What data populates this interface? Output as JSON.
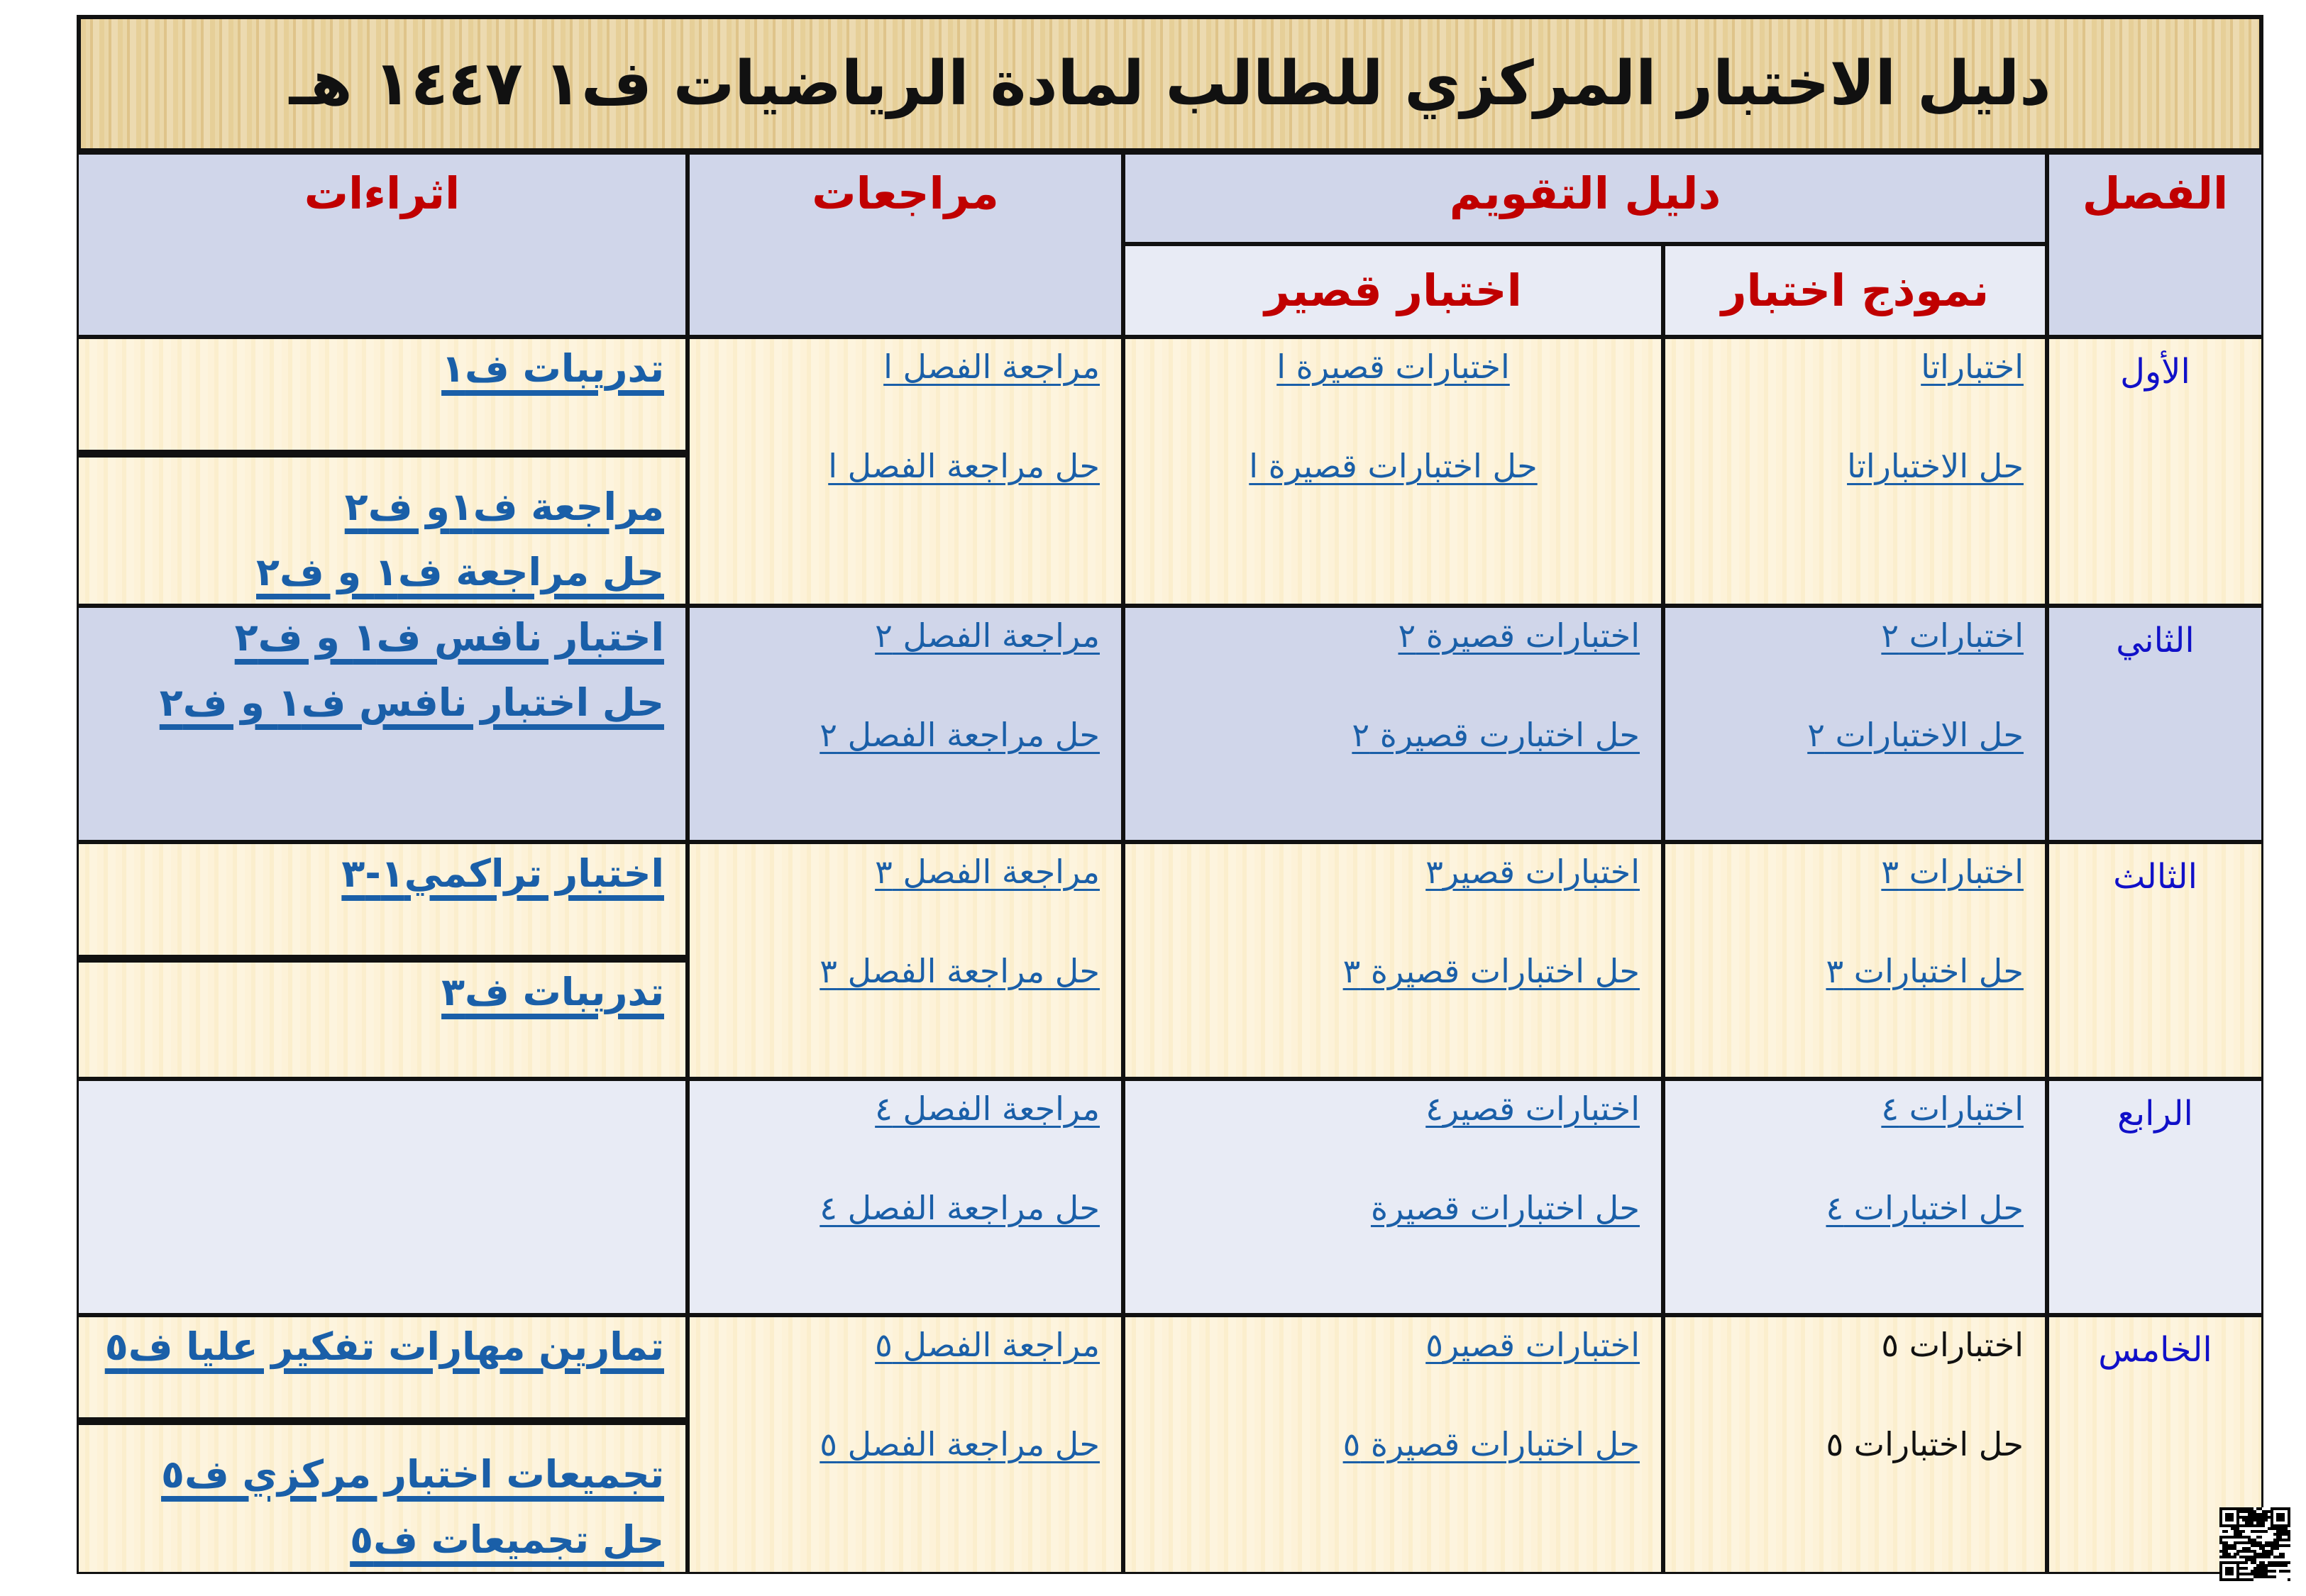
{
  "title": "دليل الاختبار المركزي للطالب لمادة الرياضيات ف١ ١٤٤٧ هـ",
  "headers": {
    "chapter": "الفصل",
    "evaluation_guide": "دليل التقويم",
    "test_model": "نموذج اختبار",
    "short_test": "اختبار قصير",
    "references": "مراجعات",
    "enrichment": "اثراءات"
  },
  "colors": {
    "link": "#1a5fa8",
    "chapter": "#1010c8",
    "header": "#c00000"
  },
  "rows": [
    {
      "chapter": "الأول",
      "model": [
        {
          "text": "اختباراتا",
          "link": true
        },
        {
          "text": "حل الاختباراتا",
          "link": true
        }
      ],
      "short": [
        {
          "text": "اختبارات قصيرة ا",
          "link": true
        },
        {
          "text": "حل اختبارات قصيرة ا",
          "link": true
        }
      ],
      "refs": [
        {
          "text": "مراجعة الفصل ا",
          "link": true
        },
        {
          "text": "حل مراجعة الفصل ا",
          "link": true
        }
      ],
      "enrich": [
        [
          "تدريبات ف١"
        ],
        [
          "مراجعة ف١و ف٢",
          "حل مراجعة ف١ و ف٢"
        ]
      ]
    },
    {
      "chapter": "الثاني",
      "model": [
        {
          "text": "اختبارات ٢",
          "link": true
        },
        {
          "text": "حل الاختبارات ٢",
          "link": true
        }
      ],
      "short": [
        {
          "text": "اختبارات قصيرة ٢",
          "link": true
        },
        {
          "text": "حل اختبارت قصيرة ٢",
          "link": true
        }
      ],
      "refs": [
        {
          "text": "مراجعة الفصل ٢",
          "link": true
        },
        {
          "text": "حل مراجعة الفصل ٢",
          "link": true
        }
      ],
      "enrich": [
        [
          "اختبار نافس ف١ و ف٢",
          "حل اختبار نافس ف١ و ف٢"
        ]
      ]
    },
    {
      "chapter": "الثالث",
      "model": [
        {
          "text": "اختبارات ٣",
          "link": true
        },
        {
          "text": "حل اختبارات ٣",
          "link": true
        }
      ],
      "short": [
        {
          "text": "اختبارات قصير٣",
          "link": true
        },
        {
          "text": "حل اختبارات قصيرة ٣",
          "link": true
        }
      ],
      "refs": [
        {
          "text": "مراجعة الفصل ٣",
          "link": true
        },
        {
          "text": "حل مراجعة الفصل ٣",
          "link": true
        }
      ],
      "enrich": [
        [
          "اختبار تراكمي١-٣"
        ],
        [
          "تدريبات ف٣"
        ]
      ]
    },
    {
      "chapter": "الرابع",
      "model": [
        {
          "text": "اختبارات ٤",
          "link": true
        },
        {
          "text": "حل اختبارات ٤",
          "link": true
        }
      ],
      "short": [
        {
          "text": "اختبارات قصير٤",
          "link": true
        },
        {
          "text": "حل اختبارات قصيرة",
          "link": true
        }
      ],
      "refs": [
        {
          "text": "مراجعة الفصل ٤",
          "link": true
        },
        {
          "text": "حل مراجعة الفصل ٤",
          "link": true
        }
      ],
      "enrich": [
        []
      ]
    },
    {
      "chapter": "الخامس",
      "model": [
        {
          "text": "اختبارات ٥",
          "link": false
        },
        {
          "text": "حل اختبارات ٥",
          "link": false
        }
      ],
      "short": [
        {
          "text": "اختبارات قصير٥",
          "link": true
        },
        {
          "text": "حل اختبارات قصيرة ٥",
          "link": true
        }
      ],
      "refs": [
        {
          "text": "مراجعة الفصل ٥",
          "link": true
        },
        {
          "text": "حل مراجعة الفصل ٥",
          "link": true
        }
      ],
      "enrich": [
        [
          "تمارين مهارات تفكير عليا ف٥"
        ],
        [
          "تجميعات اختبار مركزي ف٥",
          "حل تجميعات  ف٥"
        ]
      ]
    }
  ]
}
